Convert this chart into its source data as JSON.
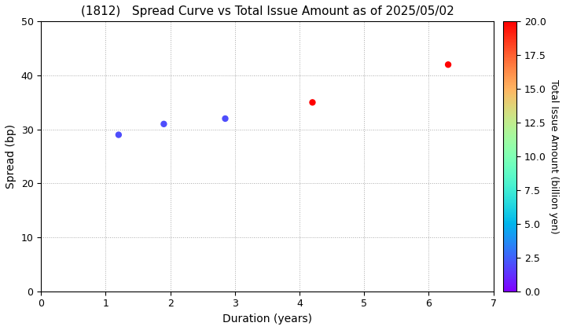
{
  "title": "(1812)   Spread Curve vs Total Issue Amount as of 2025/05/02",
  "xlabel": "Duration (years)",
  "ylabel": "Spread (bp)",
  "colorbar_label": "Total Issue Amount (billion yen)",
  "xlim": [
    0,
    7
  ],
  "ylim": [
    0,
    50
  ],
  "xticks": [
    0,
    1,
    2,
    3,
    4,
    5,
    6,
    7
  ],
  "yticks": [
    0,
    10,
    20,
    30,
    40,
    50
  ],
  "colorbar_ticks": [
    0.0,
    2.5,
    5.0,
    7.5,
    10.0,
    12.5,
    15.0,
    17.5,
    20.0
  ],
  "cmap": "rainbow",
  "vmin": 0.0,
  "vmax": 20.0,
  "points": [
    {
      "duration": 1.2,
      "spread": 29.0,
      "amount": 2.0
    },
    {
      "duration": 1.9,
      "spread": 31.0,
      "amount": 2.0
    },
    {
      "duration": 2.85,
      "spread": 32.0,
      "amount": 2.0
    },
    {
      "duration": 4.2,
      "spread": 35.0,
      "amount": 20.0
    },
    {
      "duration": 6.3,
      "spread": 42.0,
      "amount": 20.0
    }
  ],
  "marker_size": 25,
  "grid_color": "#aaaaaa",
  "grid_linestyle": "dotted",
  "background_color": "#ffffff",
  "title_fontsize": 11,
  "axis_label_fontsize": 10,
  "tick_fontsize": 9,
  "colorbar_fontsize": 9
}
